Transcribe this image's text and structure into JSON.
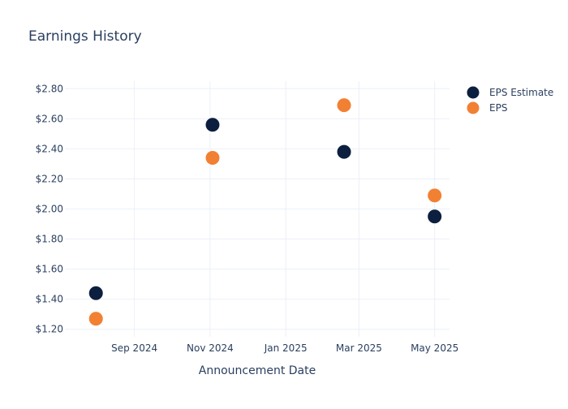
{
  "chart_data": {
    "type": "scatter",
    "title": "Earnings History",
    "xlabel": "Announcement Date",
    "ylabel": "",
    "x_ticks": [
      "Sep 2024",
      "Nov 2024",
      "Jan 2025",
      "Mar 2025",
      "May 2025"
    ],
    "x_tick_dates": [
      "2024-09-01",
      "2024-11-01",
      "2025-01-01",
      "2025-03-01",
      "2025-05-01"
    ],
    "xlim": [
      "2024-07-07",
      "2025-05-13"
    ],
    "y_ticks": [
      "$1.20",
      "$1.40",
      "$1.60",
      "$1.80",
      "$2.00",
      "$2.20",
      "$2.40",
      "$2.60",
      "$2.80"
    ],
    "ylim": [
      1.15,
      2.85
    ],
    "grid": true,
    "legend_position": "top-right",
    "series": [
      {
        "name": "EPS Estimate",
        "color": "#0d1f3f",
        "points": [
          {
            "x": "2024-08-01",
            "y": 1.44
          },
          {
            "x": "2024-11-03",
            "y": 2.56
          },
          {
            "x": "2025-02-17",
            "y": 2.38
          },
          {
            "x": "2025-05-01",
            "y": 1.95
          }
        ]
      },
      {
        "name": "EPS",
        "color": "#f28033",
        "points": [
          {
            "x": "2024-08-01",
            "y": 1.27
          },
          {
            "x": "2024-11-03",
            "y": 2.34
          },
          {
            "x": "2025-02-17",
            "y": 2.69
          },
          {
            "x": "2025-05-01",
            "y": 2.09
          }
        ]
      }
    ]
  }
}
